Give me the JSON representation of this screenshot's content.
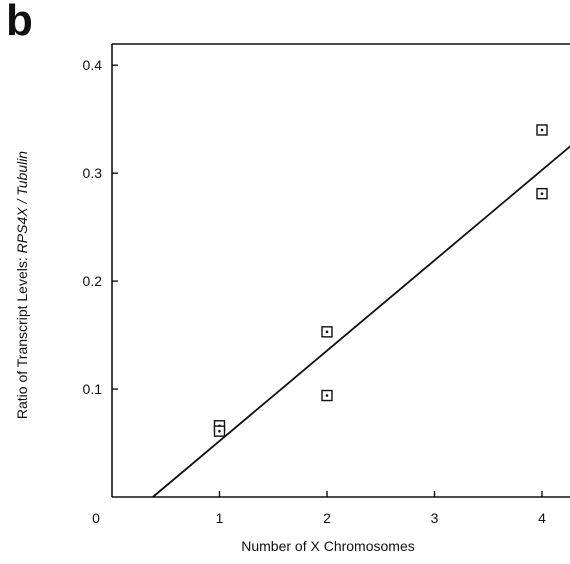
{
  "panel_label": "b",
  "chart_data": {
    "type": "scatter",
    "title": "",
    "xlabel": "Number of  X Chromosomes",
    "ylabel_prefix": "Ratio of Transcript Levels: ",
    "ylabel_italic": "RPS4X / Tubulin",
    "x_ticks": [
      "0",
      "1",
      "2",
      "3",
      "4"
    ],
    "y_ticks": [
      "0.1",
      "0.2",
      "0.3",
      "0.4"
    ],
    "xlim": [
      0,
      4.3
    ],
    "ylim": [
      0,
      0.42
    ],
    "grid": false,
    "points": [
      {
        "x": 1,
        "y": 0.066
      },
      {
        "x": 1,
        "y": 0.061
      },
      {
        "x": 2,
        "y": 0.153
      },
      {
        "x": 2,
        "y": 0.094
      },
      {
        "x": 4,
        "y": 0.34
      },
      {
        "x": 4,
        "y": 0.281
      }
    ],
    "fit_line": {
      "x_start": 0.38,
      "y_start": 0.0,
      "x_end": 4.3,
      "y_end": 0.328
    }
  }
}
